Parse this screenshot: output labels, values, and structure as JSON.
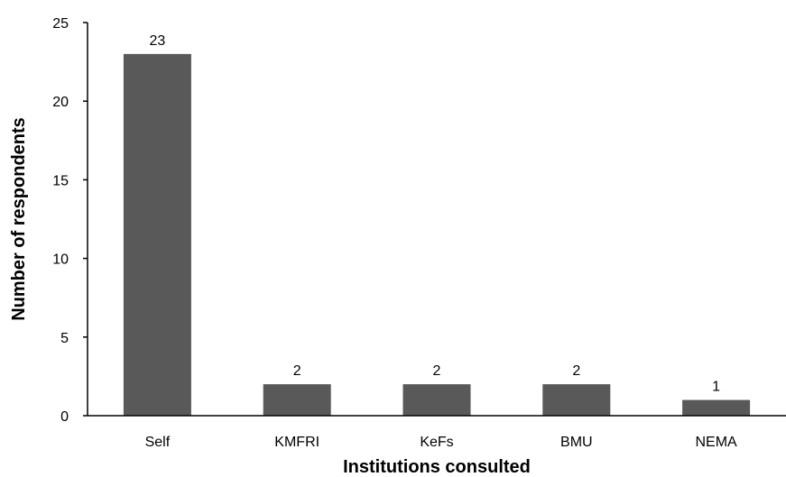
{
  "chart_data": {
    "type": "bar",
    "title": "",
    "xlabel": "Institutions consulted",
    "ylabel": "Number of respondents",
    "categories": [
      "Self",
      "KMFRI",
      "KeFs",
      "BMU",
      "NEMA"
    ],
    "values": [
      23,
      2,
      2,
      2,
      1
    ],
    "data_labels": [
      "23",
      "2",
      "2",
      "2",
      "1"
    ],
    "ylim": [
      0,
      25
    ],
    "yticks": [
      0,
      5,
      10,
      15,
      20,
      25
    ],
    "ytick_labels": [
      "0",
      "5",
      "10",
      "15",
      "20",
      "25"
    ],
    "grid": false,
    "legend": "none",
    "bar_color": "#595959",
    "axis_color": "#000000"
  }
}
